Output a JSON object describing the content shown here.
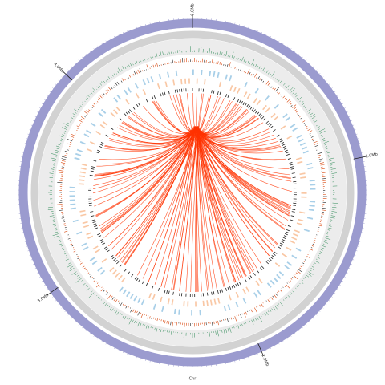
{
  "chart_data": {
    "type": "circos",
    "x_label": "Chr",
    "xlim": [
      0,
      4.6
    ],
    "xticks": [
      {
        "value": 0,
        "label": "0.0Mb"
      },
      {
        "value": 1,
        "label": "1.0Mb"
      },
      {
        "value": 2,
        "label": "2.0Mb"
      },
      {
        "value": 3,
        "label": "3.0Mb"
      },
      {
        "value": 4,
        "label": "4.0Mb"
      }
    ]
  }
}
